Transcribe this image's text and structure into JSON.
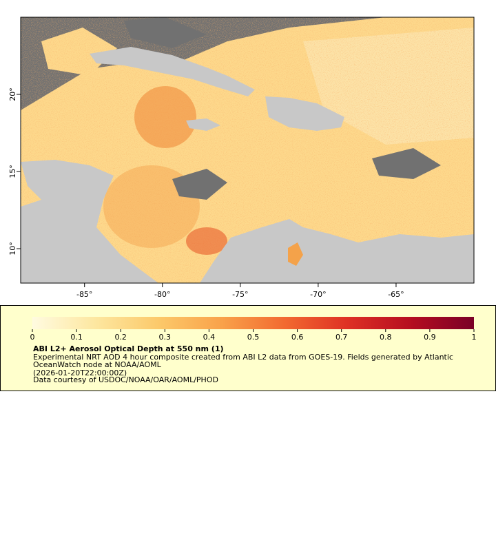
{
  "map": {
    "xlim": [
      -89.1,
      -60.0
    ],
    "ylim": [
      7.77,
      25.0
    ],
    "xticks": [
      {
        "value": -85,
        "label": "-85°"
      },
      {
        "value": -80,
        "label": "-80°"
      },
      {
        "value": -75,
        "label": "-75°"
      },
      {
        "value": -70,
        "label": "-70°"
      },
      {
        "value": -65,
        "label": "-65°"
      }
    ],
    "yticks": [
      {
        "value": 10,
        "label": "10°"
      },
      {
        "value": 15,
        "label": "15°"
      },
      {
        "value": 20,
        "label": "20°"
      }
    ]
  },
  "colorbar": {
    "range": [
      0,
      1
    ],
    "ticks": [
      0,
      0.1,
      0.2,
      0.3,
      0.4,
      0.5,
      0.6,
      0.7,
      0.8,
      0.9,
      1
    ],
    "colors": [
      "#fffbe0",
      "#fde7a0",
      "#fcc96a",
      "#f9a24a",
      "#f26a30",
      "#de3024",
      "#b50d20",
      "#7a0027"
    ]
  },
  "legend": {
    "title": "ABI L2+ Aerosol Optical Depth at 550 nm (1)",
    "lines": [
      "Experimental NRT AOD 4 hour composite created from ABI L2 data from GOES-19. Fields generated by Atlantic",
      "OceanWatch node at NOAA/AOML",
      "(2026-01-20T22:00:00Z)",
      "Data courtesy of USDOC/NOAA/OAR/AOML/PHOD"
    ]
  }
}
